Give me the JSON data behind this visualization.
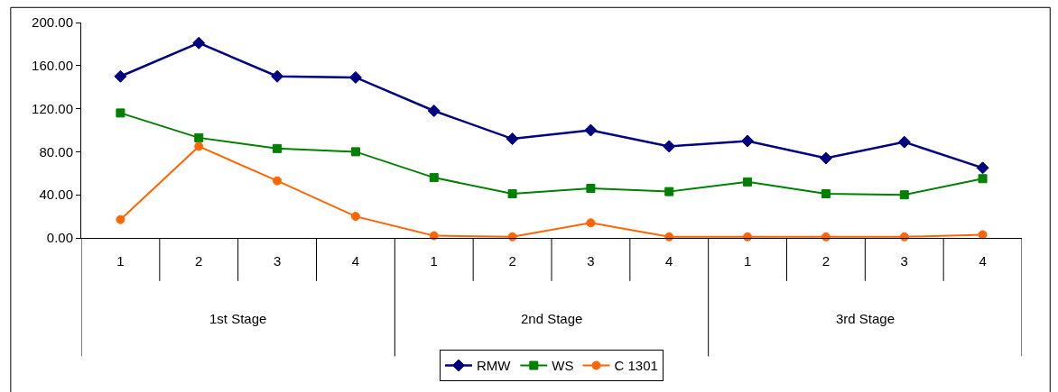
{
  "chart_data": {
    "type": "line",
    "categories": [
      "1",
      "2",
      "3",
      "4",
      "1",
      "2",
      "3",
      "4",
      "1",
      "2",
      "3",
      "4"
    ],
    "annotations": [
      "1st Stage",
      "2nd Stage",
      "3rd Stage"
    ],
    "series": [
      {
        "name": "RMW",
        "color": "#000080",
        "marker": "diamond",
        "values": [
          150,
          181,
          150,
          149,
          118,
          92,
          100,
          85,
          90,
          74,
          89,
          65
        ]
      },
      {
        "name": "WS",
        "color": "#008000",
        "marker": "square",
        "values": [
          116,
          93,
          83,
          80,
          56,
          41,
          46,
          43,
          52,
          41,
          40,
          55
        ]
      },
      {
        "name": "C 1301",
        "color": "#ff6600",
        "marker": "circle",
        "values": [
          17,
          85,
          53,
          20,
          2,
          1,
          14,
          1,
          1,
          1,
          1,
          3
        ]
      }
    ],
    "ylim": [
      0,
      200
    ],
    "yticks": [
      {
        "value": 0,
        "label": "0.00"
      },
      {
        "value": 40,
        "label": "40.00"
      },
      {
        "value": 80,
        "label": "80.00"
      },
      {
        "value": 120,
        "label": "120.00"
      },
      {
        "value": 160,
        "label": "160.00"
      },
      {
        "value": 200,
        "label": "200.00"
      }
    ],
    "grid": false,
    "legend": "bottom",
    "line_style": "solid"
  }
}
